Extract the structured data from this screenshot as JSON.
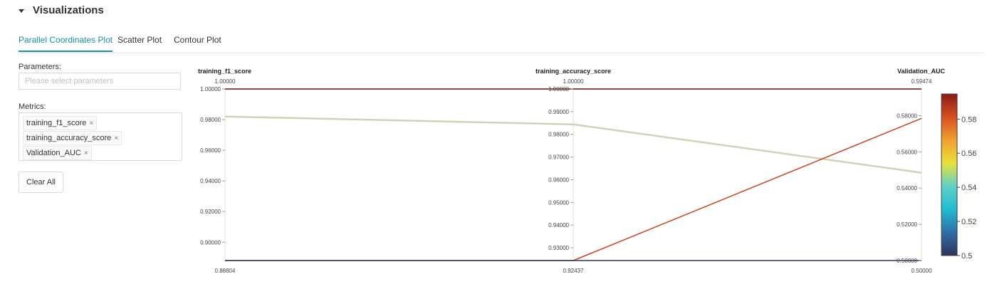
{
  "section": {
    "title": "Visualizations"
  },
  "tabs": [
    {
      "label": "Parallel Coordinates Plot",
      "active": true
    },
    {
      "label": "Scatter Plot",
      "active": false
    },
    {
      "label": "Contour Plot",
      "active": false
    }
  ],
  "parameters": {
    "label": "Parameters:",
    "placeholder": "Please select parameters"
  },
  "metrics": {
    "label": "Metrics:",
    "tags": [
      "training_f1_score",
      "training_accuracy_score",
      "Validation_AUC"
    ],
    "remove_glyph": "×"
  },
  "clear_all_label": "Clear All",
  "chart_data": {
    "type": "parallel_coordinates",
    "axes": [
      {
        "name": "training_f1_score",
        "range": [
          0.88804,
          1.0
        ],
        "top_label": "1.00000",
        "bottom_label": "0.88804",
        "ticks": [
          1.0,
          0.98,
          0.96,
          0.94,
          0.92,
          0.9
        ],
        "tick_labels": [
          "1.00000",
          "0.98000",
          "0.96000",
          "0.94000",
          "0.92000",
          "0.90000"
        ]
      },
      {
        "name": "training_accuracy_score",
        "range": [
          0.92437,
          1.0
        ],
        "top_label": "1.00000",
        "bottom_label": "0.92437",
        "ticks": [
          1.0,
          0.99,
          0.98,
          0.97,
          0.96,
          0.95,
          0.94,
          0.93
        ],
        "tick_labels": [
          "1.00000",
          "0.99000",
          "0.98000",
          "0.97000",
          "0.96000",
          "0.95000",
          "0.94000",
          "0.93000"
        ]
      },
      {
        "name": "Validation_AUC",
        "range": [
          0.5,
          0.59474
        ],
        "top_label": "0.59474",
        "bottom_label": "0.50000",
        "ticks": [
          0.58,
          0.56,
          0.54,
          0.52,
          0.5
        ],
        "tick_labels": [
          "0.58000",
          "0.56000",
          "0.54000",
          "0.52000",
          "0.50000"
        ]
      }
    ],
    "lines": [
      {
        "values": [
          1.0,
          1.0,
          0.59474
        ],
        "color": "#6b0f0f"
      },
      {
        "values": [
          0.982,
          0.9844,
          0.5485
        ],
        "color": "#cbd5b6"
      },
      {
        "values": [
          0.88804,
          0.92437,
          0.5785
        ],
        "color": "#cc4520"
      },
      {
        "values": [
          0.88804,
          0.92437,
          0.5
        ],
        "color": "#2f3359"
      }
    ],
    "colorbar": {
      "range": [
        0.5,
        0.59474
      ],
      "ticks": [
        0.58,
        0.56,
        0.54,
        0.52,
        0.5
      ],
      "tick_labels": [
        "0.58",
        "0.56",
        "0.54",
        "0.52",
        "0.5"
      ],
      "colors": [
        "#2f3359",
        "#2f6ea8",
        "#22bcd0",
        "#5fd0c8",
        "#e8e23a",
        "#f0a030",
        "#d65020",
        "#8a1a18"
      ]
    }
  }
}
